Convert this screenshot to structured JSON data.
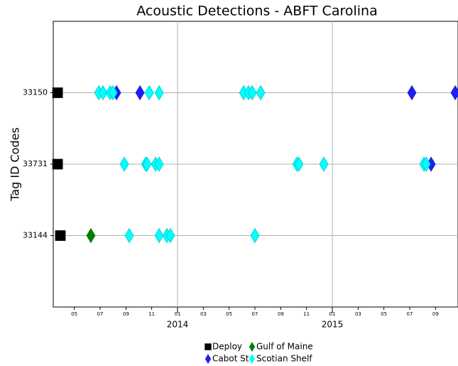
{
  "chart_data": {
    "type": "scatter",
    "title": "Acoustic Detections - ABFT Carolina",
    "y_label": "Tag ID Codes",
    "xlim": [
      2013.197,
      2015.812
    ],
    "xticks": [
      {
        "value": 2013.333,
        "label": "05"
      },
      {
        "value": 2013.5,
        "label": "07"
      },
      {
        "value": 2013.667,
        "label": "09"
      },
      {
        "value": 2013.833,
        "label": "11"
      },
      {
        "value": 2014,
        "label": "01"
      },
      {
        "value": 2014.167,
        "label": "03"
      },
      {
        "value": 2014.333,
        "label": "05"
      },
      {
        "value": 2014.5,
        "label": "07"
      },
      {
        "value": 2014.667,
        "label": "09"
      },
      {
        "value": 2014.833,
        "label": "11"
      },
      {
        "value": 2015,
        "label": "01"
      },
      {
        "value": 2015.167,
        "label": "03"
      },
      {
        "value": 2015.333,
        "label": "05"
      },
      {
        "value": 2015.5,
        "label": "07"
      },
      {
        "value": 2015.667,
        "label": "09"
      }
    ],
    "year_ticks": [
      {
        "value": 2014,
        "label": "2014"
      },
      {
        "value": 2015,
        "label": "2015"
      }
    ],
    "ylim": [
      0,
      4
    ],
    "yticks": [
      {
        "value": 3,
        "label": "33150"
      },
      {
        "value": 2,
        "label": "33731"
      },
      {
        "value": 1,
        "label": "33144"
      }
    ],
    "grid": true,
    "legend": "bottom",
    "series": [
      {
        "name": "Deploy",
        "color": "#000000",
        "marker": "square",
        "x": [
          2013.225,
          2013.225,
          2013.243
        ],
        "y": [
          3,
          2,
          1
        ]
      },
      {
        "name": "Cabot St",
        "color": "#1f1fee",
        "marker": "diamond",
        "x": [
          2013.606,
          2013.757,
          2015.514,
          2015.794,
          2015.638
        ],
        "y": [
          3,
          3,
          3,
          3,
          2
        ]
      },
      {
        "name": "Gulf of Maine",
        "color": "#008000",
        "marker": "diamond",
        "x": [
          2013.44
        ],
        "y": [
          1
        ]
      },
      {
        "name": "Scotian Shelf",
        "color": "#00ffff",
        "marker": "diamond",
        "x": [
          2013.491,
          2013.518,
          2013.564,
          2013.583,
          2013.817,
          2013.881,
          2014.427,
          2014.459,
          2014.482,
          2014.537,
          2013.656,
          2013.794,
          2013.803,
          2013.858,
          2013.881,
          2014.771,
          2014.784,
          2014.945,
          2015.592,
          2015.606,
          2013.688,
          2013.881,
          2013.931,
          2013.954,
          2014.5
        ],
        "y": [
          3,
          3,
          3,
          3,
          3,
          3,
          3,
          3,
          3,
          3,
          2,
          2,
          2,
          2,
          2,
          2,
          2,
          2,
          2,
          2,
          1,
          1,
          1,
          1,
          1
        ]
      }
    ]
  }
}
